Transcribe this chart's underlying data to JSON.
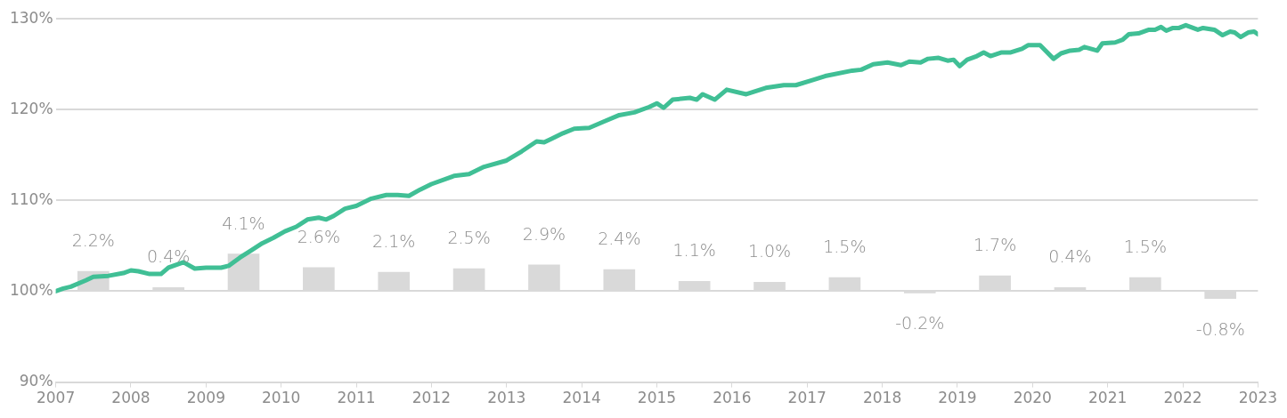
{
  "chart_data": {
    "type": "line",
    "xlim": [
      2007,
      2023
    ],
    "xticks": [
      2007,
      2008,
      2009,
      2010,
      2011,
      2012,
      2013,
      2014,
      2015,
      2016,
      2017,
      2018,
      2019,
      2020,
      2021,
      2022,
      2023
    ],
    "ylim": [
      90,
      130
    ],
    "yticks": [
      {
        "value": 90,
        "label": "90%"
      },
      {
        "value": 100,
        "label": "100%"
      },
      {
        "value": 110,
        "label": "110%"
      },
      {
        "value": 120,
        "label": "120%"
      },
      {
        "value": 130,
        "label": "130%"
      }
    ],
    "grid": "y",
    "legend": false,
    "marker": "none",
    "line_style": "solid",
    "series": [
      {
        "type": "bar",
        "color": "#d9d9d9",
        "x": [
          2007.5,
          2008.5,
          2009.5,
          2010.5,
          2011.5,
          2012.5,
          2013.5,
          2014.5,
          2015.5,
          2016.5,
          2017.5,
          2018.5,
          2019.5,
          2020.5,
          2021.5,
          2022.5
        ],
        "base": [
          100,
          100,
          100,
          100,
          100,
          100,
          100,
          100,
          100,
          100,
          100,
          100,
          100,
          100,
          100,
          100
        ],
        "values": [
          2.2,
          0.4,
          4.1,
          2.6,
          2.1,
          2.5,
          2.9,
          2.4,
          1.1,
          1.0,
          1.5,
          -0.2,
          1.7,
          0.4,
          1.5,
          -0.8
        ],
        "value_labels": [
          "2.2%",
          "0.4%",
          "4.1%",
          "2.6%",
          "2.1%",
          "2.5%",
          "2.9%",
          "2.4%",
          "1.1%",
          "1.0%",
          "1.5%",
          "-0.2%",
          "1.7%",
          "0.4%",
          "1.5%",
          "-0.8%"
        ]
      },
      {
        "color": "#40bf95",
        "x": [
          2007.0,
          2007.1,
          2007.2,
          2007.4,
          2007.5,
          2007.7,
          2007.9,
          2008.0,
          2008.1,
          2008.25,
          2008.4,
          2008.5,
          2008.7,
          2008.85,
          2009.0,
          2009.2,
          2009.3,
          2009.45,
          2009.6,
          2009.75,
          2009.9,
          2010.05,
          2010.2,
          2010.35,
          2010.5,
          2010.6,
          2010.7,
          2010.85,
          2011.0,
          2011.2,
          2011.4,
          2011.55,
          2011.7,
          2011.85,
          2012.0,
          2012.3,
          2012.5,
          2012.7,
          2013.0,
          2013.2,
          2013.4,
          2013.5,
          2013.6,
          2013.75,
          2013.9,
          2014.1,
          2014.3,
          2014.5,
          2014.7,
          2014.9,
          2015.0,
          2015.09,
          2015.21,
          2015.44,
          2015.53,
          2015.61,
          2015.77,
          2015.93,
          2016.19,
          2016.45,
          2016.69,
          2016.85,
          2017.05,
          2017.24,
          2017.6,
          2017.72,
          2017.88,
          2018.07,
          2018.25,
          2018.36,
          2018.51,
          2018.61,
          2018.75,
          2018.87,
          2018.95,
          2019.03,
          2019.13,
          2019.26,
          2019.35,
          2019.44,
          2019.59,
          2019.71,
          2019.86,
          2019.94,
          2020.1,
          2020.28,
          2020.38,
          2020.5,
          2020.62,
          2020.69,
          2020.86,
          2020.93,
          2021.1,
          2021.2,
          2021.28,
          2021.41,
          2021.55,
          2021.63,
          2021.71,
          2021.78,
          2021.87,
          2021.95,
          2022.04,
          2022.2,
          2022.27,
          2022.42,
          2022.53,
          2022.63,
          2022.69,
          2022.77,
          2022.87,
          2022.95,
          2023.0
        ],
        "values": [
          100.0,
          100.3,
          100.5,
          101.2,
          101.6,
          101.7,
          102.0,
          102.3,
          102.2,
          101.9,
          101.9,
          102.6,
          103.2,
          102.5,
          102.6,
          102.6,
          102.8,
          103.7,
          104.5,
          105.3,
          105.9,
          106.6,
          107.1,
          107.9,
          108.1,
          107.9,
          108.3,
          109.1,
          109.4,
          110.2,
          110.6,
          110.6,
          110.5,
          111.2,
          111.8,
          112.7,
          112.9,
          113.7,
          114.4,
          115.4,
          116.5,
          116.4,
          116.8,
          117.4,
          117.9,
          118.0,
          118.7,
          119.4,
          119.7,
          120.3,
          120.7,
          120.2,
          121.1,
          121.3,
          121.1,
          121.7,
          121.1,
          122.2,
          121.7,
          122.4,
          122.7,
          122.7,
          123.2,
          123.7,
          124.3,
          124.4,
          125.0,
          125.2,
          124.9,
          125.3,
          125.2,
          125.6,
          125.7,
          125.4,
          125.5,
          124.8,
          125.5,
          125.9,
          126.3,
          125.9,
          126.3,
          126.3,
          126.7,
          127.1,
          127.1,
          125.6,
          126.2,
          126.5,
          126.6,
          126.9,
          126.5,
          127.3,
          127.4,
          127.7,
          128.3,
          128.4,
          128.8,
          128.8,
          129.1,
          128.7,
          129.0,
          129.0,
          129.3,
          128.8,
          129.0,
          128.8,
          128.2,
          128.6,
          128.5,
          128.0,
          128.5,
          128.6,
          128.3
        ]
      }
    ]
  }
}
